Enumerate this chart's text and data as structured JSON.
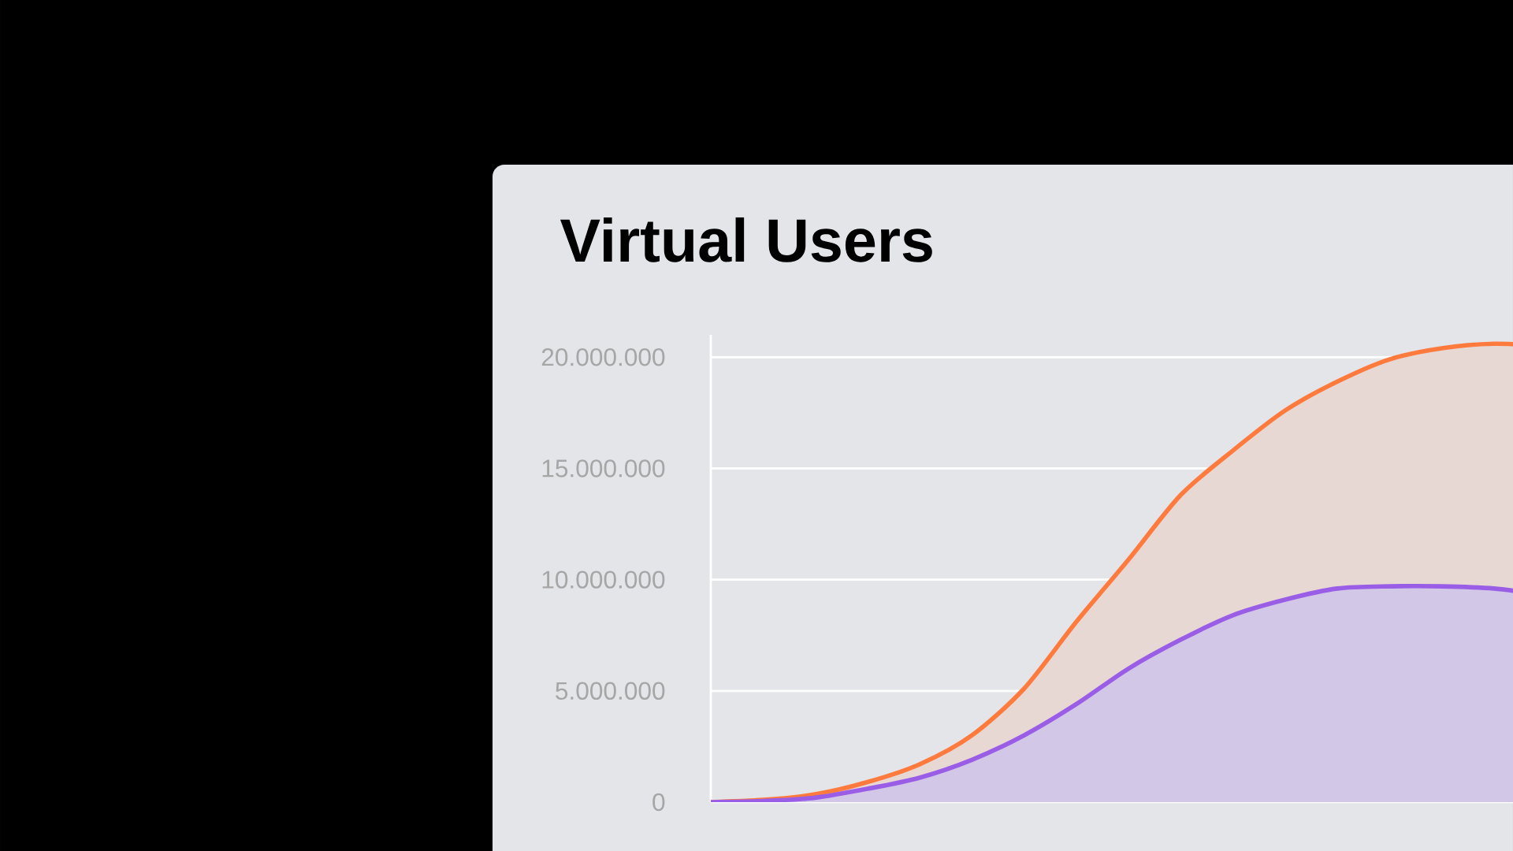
{
  "chart_data": {
    "type": "area",
    "title": "Virtual Users",
    "categories": [
      null,
      null,
      null,
      null,
      null,
      null,
      null,
      null,
      null,
      null,
      null,
      null,
      null,
      null,
      null,
      null,
      null
    ],
    "series": [
      {
        "color": "#ff7a3d",
        "values": [
          0,
          100000,
          350000,
          900000,
          1700000,
          3000000,
          5100000,
          8100000,
          10900000,
          13800000,
          15800000,
          17600000,
          18900000,
          19900000,
          20400000,
          20600000,
          20500000
        ]
      },
      {
        "color": "#9a5ee6",
        "values": [
          0,
          50000,
          200000,
          600000,
          1100000,
          1900000,
          3000000,
          4400000,
          6000000,
          7300000,
          8400000,
          9100000,
          9600000,
          9700000,
          9700000,
          9600000,
          9300000
        ]
      }
    ],
    "yticks": [
      {
        "value": 0,
        "label": "0"
      },
      {
        "value": 5000000,
        "label": "5.000.000"
      },
      {
        "value": 10000000,
        "label": "10.000.000"
      },
      {
        "value": 15000000,
        "label": "15.000.000"
      },
      {
        "value": 20000000,
        "label": "20.000.000"
      }
    ],
    "ylim": [
      0,
      21000000
    ],
    "grid": "y",
    "tick_labels": "y"
  }
}
